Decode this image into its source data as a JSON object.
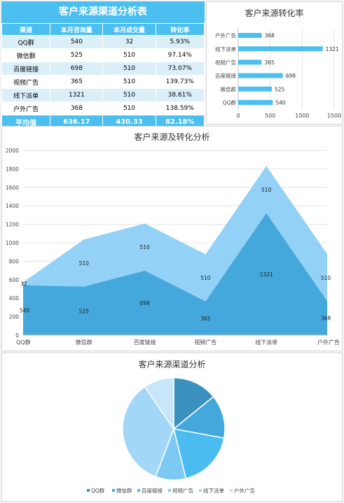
{
  "table": {
    "title": "客户来源渠道分析表",
    "headers": [
      "渠道",
      "本月咨询量",
      "本月成交量",
      "转化率"
    ],
    "rows": [
      [
        "QQ群",
        "540",
        "32",
        "5.93%"
      ],
      [
        "微信群",
        "525",
        "510",
        "97.14%"
      ],
      [
        "百度链接",
        "698",
        "510",
        "73.07%"
      ],
      [
        "视频广告",
        "365",
        "510",
        "139.73%"
      ],
      [
        "线下派单",
        "1321",
        "510",
        "38.61%"
      ],
      [
        "户外广告",
        "368",
        "510",
        "138.59%"
      ]
    ],
    "average": [
      "平均值",
      "636.17",
      "430.33",
      "82.18%"
    ]
  },
  "chart_data": [
    {
      "type": "bar",
      "title": "客户来源转化率",
      "categories": [
        "户外广告",
        "线下派单",
        "视频广告",
        "百度链接",
        "微信群",
        "QQ群"
      ],
      "values": [
        368,
        1321,
        365,
        698,
        525,
        540
      ],
      "xlim": [
        0,
        1500
      ],
      "xticks": [
        0,
        500,
        1000,
        1500
      ],
      "color": "#4bbff0"
    },
    {
      "type": "area",
      "title": "客户来源及转化分析",
      "categories": [
        "QQ群",
        "微信群",
        "百度链接",
        "视频广告",
        "线下派单",
        "户外广告"
      ],
      "series": [
        {
          "values": [
            540,
            525,
            698,
            365,
            1321,
            368
          ],
          "color": "#45a8dc"
        },
        {
          "values": [
            32,
            510,
            510,
            510,
            510,
            510
          ],
          "color": "#93d1f6"
        }
      ],
      "stacked": true,
      "ylim": [
        0,
        2000
      ],
      "yticks": [
        0,
        200,
        400,
        600,
        800,
        1000,
        1200,
        1400,
        1600,
        1800,
        2000
      ],
      "grid": true
    },
    {
      "type": "pie",
      "title": "客户来源渠道分析",
      "categories": [
        "QQ群",
        "微信群",
        "百度链接",
        "视频广告",
        "线下派单",
        "户外广告"
      ],
      "values": [
        540,
        525,
        698,
        365,
        1321,
        368
      ],
      "colors": [
        "#3a90bf",
        "#45a8dc",
        "#4bbcf0",
        "#7ccaf4",
        "#a3d7f7",
        "#c7e6fa"
      ],
      "legend": "bottom"
    }
  ]
}
